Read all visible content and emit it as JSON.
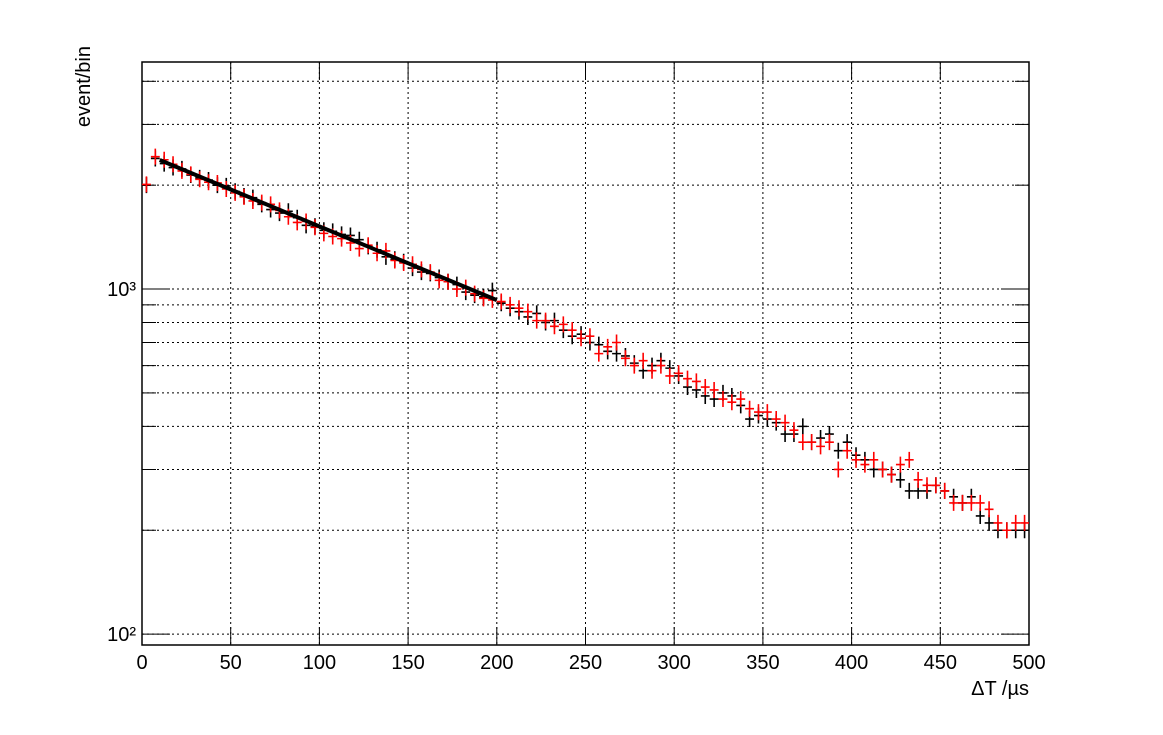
{
  "chart_data": {
    "type": "scatter",
    "xlabel": "ΔT /µs",
    "ylabel": "event/bin",
    "xlim": [
      0,
      500
    ],
    "ylim": [
      93,
      4550
    ],
    "log_y": true,
    "grid": true,
    "xticks": [
      0,
      50,
      100,
      150,
      200,
      250,
      300,
      350,
      400,
      450,
      500
    ],
    "yticks": [
      {
        "value": 100,
        "label": "10²"
      },
      {
        "value": 1000,
        "label": "10³"
      }
    ],
    "yminorticks": [
      200,
      300,
      400,
      500,
      600,
      700,
      800,
      900,
      2000,
      3000,
      4000
    ],
    "x": [
      2.5,
      7.5,
      12.5,
      17.5,
      22.5,
      27.5,
      32.5,
      37.5,
      42.5,
      47.5,
      52.5,
      57.5,
      62.5,
      67.5,
      72.5,
      77.5,
      82.5,
      87.5,
      92.5,
      97.5,
      102.5,
      107.5,
      112.5,
      117.5,
      122.5,
      127.5,
      132.5,
      137.5,
      142.5,
      147.5,
      152.5,
      157.5,
      162.5,
      167.5,
      172.5,
      177.5,
      182.5,
      187.5,
      192.5,
      197.5,
      202.5,
      207.5,
      212.5,
      217.5,
      222.5,
      227.5,
      232.5,
      237.5,
      242.5,
      247.5,
      252.5,
      257.5,
      262.5,
      267.5,
      272.5,
      277.5,
      282.5,
      287.5,
      292.5,
      297.5,
      302.5,
      307.5,
      312.5,
      317.5,
      322.5,
      327.5,
      332.5,
      337.5,
      342.5,
      347.5,
      352.5,
      357.5,
      362.5,
      367.5,
      372.5,
      377.5,
      382.5,
      387.5,
      392.5,
      397.5,
      402.5,
      407.5,
      412.5,
      417.5,
      422.5,
      427.5,
      432.5,
      437.5,
      442.5,
      447.5,
      452.5,
      457.5,
      462.5,
      467.5,
      472.5,
      477.5,
      482.5,
      487.5,
      492.5,
      497.5
    ],
    "series": [
      {
        "color": "#000000",
        "values": [
          2000,
          2390,
          2310,
          2250,
          2230,
          2140,
          2100,
          2070,
          2000,
          1990,
          1920,
          1860,
          1840,
          1760,
          1700,
          1660,
          1680,
          1610,
          1530,
          1520,
          1480,
          1470,
          1440,
          1430,
          1390,
          1330,
          1300,
          1240,
          1220,
          1200,
          1150,
          1120,
          1110,
          1080,
          1050,
          1030,
          980,
          960,
          950,
          990,
          910,
          880,
          860,
          830,
          850,
          800,
          810,
          760,
          730,
          740,
          700,
          690,
          660,
          650,
          640,
          610,
          580,
          600,
          620,
          590,
          560,
          520,
          510,
          490,
          480,
          500,
          490,
          460,
          420,
          430,
          420,
          410,
          380,
          380,
          400,
          360,
          370,
          380,
          340,
          360,
          330,
          320,
          300,
          300,
          290,
          280,
          260,
          260,
          260,
          270,
          260,
          250,
          240,
          250,
          220,
          210,
          200,
          200,
          200,
          200
        ]
      },
      {
        "color": "#ff0000",
        "values": [
          2010,
          2420,
          2370,
          2300,
          2200,
          2150,
          2080,
          2040,
          2030,
          1950,
          1900,
          1850,
          1800,
          1780,
          1760,
          1690,
          1620,
          1560,
          1570,
          1510,
          1450,
          1420,
          1400,
          1360,
          1310,
          1340,
          1270,
          1290,
          1210,
          1190,
          1180,
          1140,
          1120,
          1060,
          1050,
          1000,
          1010,
          970,
          940,
          930,
          920,
          900,
          880,
          860,
          810,
          810,
          780,
          790,
          760,
          720,
          730,
          650,
          680,
          700,
          630,
          600,
          620,
          580,
          600,
          560,
          570,
          550,
          540,
          520,
          510,
          480,
          470,
          480,
          450,
          440,
          440,
          420,
          410,
          390,
          360,
          360,
          350,
          360,
          300,
          340,
          320,
          310,
          320,
          300,
          290,
          310,
          320,
          280,
          270,
          270,
          260,
          240,
          240,
          240,
          240,
          230,
          210,
          200,
          210,
          210
        ]
      }
    ],
    "fit": {
      "color": "#000000",
      "x": [
        10,
        200
      ],
      "values": [
        2366,
        929
      ]
    }
  }
}
